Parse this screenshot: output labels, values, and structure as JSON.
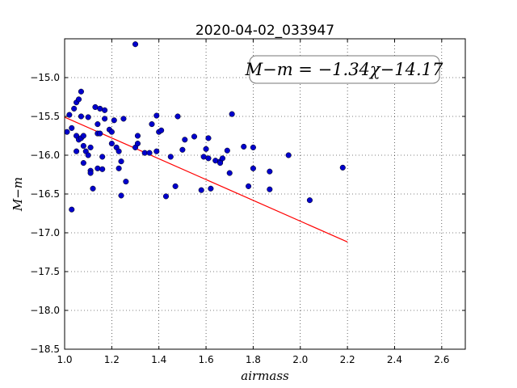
{
  "chart_data": {
    "type": "scatter",
    "title": "2020-04-02_033947",
    "xlabel": "airmass",
    "ylabel": "M−m",
    "xlim": [
      1.0,
      2.7
    ],
    "ylim": [
      -18.5,
      -14.5
    ],
    "y_inverted": true,
    "grid": true,
    "x_ticks": [
      "1.0",
      "1.2",
      "1.4",
      "1.6",
      "1.8",
      "2.0",
      "2.2",
      "2.4",
      "2.6"
    ],
    "y_ticks": [
      "−15.0",
      "−15.5",
      "−16.0",
      "−16.5",
      "−17.0",
      "−17.5",
      "−18.0",
      "−18.5"
    ],
    "annotation": "M−m = −1.34χ−14.17",
    "annotation_placement": "top-right",
    "point_color": "#0000cc",
    "fit_line_color": "#ff0000",
    "fit_line": {
      "slope": -1.34,
      "intercept": -14.17,
      "x_range": [
        1.0,
        2.2
      ]
    },
    "points": [
      [
        1.01,
        -15.7
      ],
      [
        1.02,
        -15.48
      ],
      [
        1.03,
        -15.65
      ],
      [
        1.03,
        -16.7
      ],
      [
        1.04,
        -15.4
      ],
      [
        1.05,
        -15.32
      ],
      [
        1.05,
        -15.75
      ],
      [
        1.05,
        -15.95
      ],
      [
        1.06,
        -15.28
      ],
      [
        1.06,
        -15.8
      ],
      [
        1.07,
        -15.18
      ],
      [
        1.07,
        -15.5
      ],
      [
        1.07,
        -15.78
      ],
      [
        1.08,
        -15.75
      ],
      [
        1.08,
        -15.88
      ],
      [
        1.08,
        -16.1
      ],
      [
        1.09,
        -15.95
      ],
      [
        1.1,
        -15.51
      ],
      [
        1.1,
        -16.0
      ],
      [
        1.11,
        -15.9
      ],
      [
        1.11,
        -16.2
      ],
      [
        1.11,
        -16.23
      ],
      [
        1.12,
        -16.43
      ],
      [
        1.13,
        -15.38
      ],
      [
        1.14,
        -15.6
      ],
      [
        1.14,
        -15.72
      ],
      [
        1.14,
        -16.17
      ],
      [
        1.15,
        -15.72
      ],
      [
        1.15,
        -15.4
      ],
      [
        1.16,
        -16.02
      ],
      [
        1.16,
        -16.18
      ],
      [
        1.17,
        -15.42
      ],
      [
        1.17,
        -15.53
      ],
      [
        1.19,
        -15.67
      ],
      [
        1.2,
        -15.7
      ],
      [
        1.2,
        -15.85
      ],
      [
        1.21,
        -15.55
      ],
      [
        1.22,
        -15.9
      ],
      [
        1.23,
        -15.95
      ],
      [
        1.23,
        -16.17
      ],
      [
        1.24,
        -16.08
      ],
      [
        1.24,
        -16.52
      ],
      [
        1.25,
        -15.53
      ],
      [
        1.26,
        -16.34
      ],
      [
        1.3,
        -14.57
      ],
      [
        1.3,
        -15.9
      ],
      [
        1.31,
        -15.85
      ],
      [
        1.31,
        -15.75
      ],
      [
        1.34,
        -15.97
      ],
      [
        1.36,
        -15.97
      ],
      [
        1.37,
        -15.6
      ],
      [
        1.39,
        -15.49
      ],
      [
        1.39,
        -15.95
      ],
      [
        1.4,
        -15.7
      ],
      [
        1.41,
        -15.68
      ],
      [
        1.43,
        -16.53
      ],
      [
        1.45,
        -16.02
      ],
      [
        1.47,
        -16.4
      ],
      [
        1.48,
        -15.5
      ],
      [
        1.5,
        -15.93
      ],
      [
        1.51,
        -15.8
      ],
      [
        1.55,
        -15.76
      ],
      [
        1.58,
        -16.45
      ],
      [
        1.59,
        -16.02
      ],
      [
        1.6,
        -15.92
      ],
      [
        1.61,
        -15.78
      ],
      [
        1.61,
        -16.04
      ],
      [
        1.62,
        -16.43
      ],
      [
        1.64,
        -16.07
      ],
      [
        1.66,
        -16.08
      ],
      [
        1.66,
        -16.1
      ],
      [
        1.67,
        -16.04
      ],
      [
        1.69,
        -15.94
      ],
      [
        1.7,
        -16.23
      ],
      [
        1.71,
        -15.47
      ],
      [
        1.76,
        -15.89
      ],
      [
        1.78,
        -16.4
      ],
      [
        1.8,
        -15.9
      ],
      [
        1.8,
        -16.17
      ],
      [
        1.87,
        -16.21
      ],
      [
        1.87,
        -16.44
      ],
      [
        1.95,
        -16.0
      ],
      [
        2.04,
        -16.58
      ],
      [
        2.18,
        -16.16
      ]
    ]
  }
}
